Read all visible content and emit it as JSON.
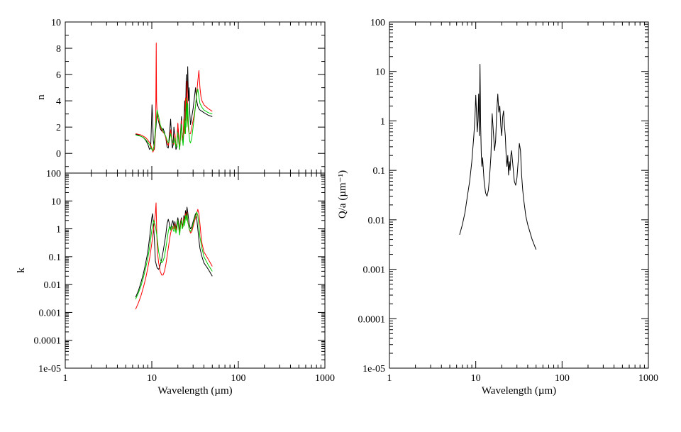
{
  "chart_data": [
    {
      "id": "n-panel",
      "type": "line",
      "xscale": "log",
      "yscale": "linear",
      "xlim": [
        1,
        1000
      ],
      "ylim": [
        -1.5,
        10
      ],
      "yticks": [
        0,
        2,
        4,
        6,
        8,
        10
      ],
      "ytick_labels": [
        "0",
        "2",
        "4",
        "6",
        "8",
        "10"
      ],
      "xticks": [],
      "xtick_labels": [],
      "xlabel": "",
      "ylabel": "n",
      "series": [
        {
          "color": "#000000",
          "x": [
            6.5,
            7,
            7.5,
            8,
            8.5,
            9,
            9.4,
            9.7,
            9.9,
            10.05,
            10.2,
            10.4,
            10.7,
            11,
            11.5,
            12,
            12.5,
            13,
            13.5,
            14,
            14.5,
            15,
            15.5,
            16,
            16.5,
            17,
            17.3,
            17.6,
            18,
            18.5,
            19,
            19.5,
            20,
            20.5,
            21,
            21.5,
            22,
            22.5,
            23,
            23.5,
            24,
            24.5,
            25,
            25.5,
            26,
            26.5,
            27,
            27.5,
            28,
            29,
            30,
            31,
            32,
            33,
            34,
            35,
            36,
            38,
            40,
            45,
            50
          ],
          "y": [
            1.45,
            1.4,
            1.3,
            1.2,
            1.0,
            0.7,
            0.3,
            0.4,
            2.2,
            3.7,
            2.8,
            1.0,
            0.3,
            1.5,
            3.0,
            2.4,
            1.9,
            1.7,
            1.9,
            1.6,
            1.2,
            0.5,
            0.4,
            1.5,
            2.6,
            1.0,
            0.4,
            0.6,
            2.0,
            1.3,
            0.3,
            0.5,
            2.2,
            1.0,
            0.3,
            1.6,
            2.8,
            1.1,
            0.8,
            2.5,
            4.0,
            2.5,
            6.0,
            3.0,
            6.6,
            4.0,
            5.0,
            3.0,
            2.2,
            2.8,
            3.4,
            4.2,
            5.0,
            4.0,
            3.6,
            3.4,
            3.3,
            3.2,
            3.1,
            2.9,
            2.8
          ]
        },
        {
          "color": "#ff0000",
          "x": [
            6.5,
            7,
            7.5,
            8,
            8.5,
            9,
            9.5,
            10,
            10.3,
            10.6,
            10.9,
            11.1,
            11.25,
            11.35,
            11.5,
            11.8,
            12.2,
            12.6,
            13,
            13.5,
            14,
            14.5,
            15,
            15.5,
            16,
            16.5,
            17,
            17.5,
            18,
            18.5,
            19,
            19.5,
            20,
            20.5,
            21,
            21.5,
            22,
            22.5,
            23,
            23.5,
            24,
            24.5,
            25,
            25.5,
            26,
            26.5,
            27,
            28,
            29,
            30,
            31,
            32,
            33,
            34,
            35,
            36,
            37,
            38,
            40,
            45,
            50
          ],
          "y": [
            1.5,
            1.45,
            1.4,
            1.3,
            1.2,
            1.0,
            0.8,
            0.4,
            0.1,
            0.3,
            1.2,
            2.5,
            8.4,
            4.0,
            3.2,
            2.6,
            2.4,
            2.0,
            1.8,
            1.6,
            1.5,
            1.2,
            0.8,
            0.6,
            1.0,
            1.8,
            1.2,
            0.8,
            0.7,
            1.5,
            0.6,
            0.7,
            2.3,
            1.2,
            0.4,
            1.2,
            2.5,
            1.0,
            1.3,
            2.6,
            1.5,
            4.2,
            3.0,
            5.5,
            3.0,
            1.8,
            1.5,
            1.5,
            2.0,
            2.5,
            3.0,
            3.6,
            4.5,
            5.5,
            6.3,
            5.0,
            4.3,
            4.0,
            3.7,
            3.4,
            3.2
          ]
        },
        {
          "color": "#00cc00",
          "x": [
            6.5,
            7,
            7.5,
            8,
            8.5,
            9,
            9.5,
            10,
            10.3,
            10.6,
            10.9,
            11.2,
            11.5,
            12,
            12.5,
            13,
            13.5,
            14,
            14.5,
            15,
            15.5,
            16,
            16.5,
            17,
            17.5,
            18,
            18.5,
            19,
            19.5,
            20,
            20.5,
            21,
            21.5,
            22,
            22.5,
            23,
            23.5,
            24,
            24.5,
            25,
            25.5,
            26,
            26.5,
            27,
            27.5,
            28,
            29,
            30,
            31,
            32,
            33,
            34,
            35,
            36,
            38,
            40,
            45,
            50
          ],
          "y": [
            1.4,
            1.35,
            1.3,
            1.2,
            1.05,
            0.85,
            0.6,
            0.3,
            0.2,
            0.6,
            1.5,
            2.4,
            3.3,
            2.8,
            2.2,
            1.9,
            1.7,
            1.5,
            1.3,
            1.0,
            0.8,
            1.0,
            1.5,
            1.1,
            0.8,
            0.8,
            1.2,
            0.5,
            0.6,
            1.6,
            0.8,
            0.3,
            1.4,
            2.2,
            1.2,
            0.6,
            1.8,
            2.6,
            1.5,
            4.2,
            2.0,
            3.8,
            2.2,
            1.4,
            0.9,
            0.8,
            1.2,
            2.0,
            2.8,
            3.6,
            4.5,
            4.9,
            4.3,
            3.8,
            3.5,
            3.3,
            3.1,
            3.0
          ]
        }
      ]
    },
    {
      "id": "k-panel",
      "type": "line",
      "xscale": "log",
      "yscale": "log",
      "xlim": [
        1,
        1000
      ],
      "ylim": [
        1e-05,
        100
      ],
      "yticks": [
        1e-05,
        0.0001,
        0.001,
        0.01,
        0.1,
        1,
        10,
        100
      ],
      "ytick_labels": [
        "1e-05",
        "0.0001",
        "0.001",
        "0.01",
        "0.1",
        "1",
        "10",
        "100"
      ],
      "xticks": [
        1,
        10,
        100,
        1000
      ],
      "xtick_labels": [
        "1",
        "10",
        "100",
        "1000"
      ],
      "xlabel": "Wavelength (µm)",
      "ylabel": "k",
      "series": [
        {
          "color": "#000000",
          "x": [
            6.5,
            7,
            7.5,
            8,
            8.5,
            9,
            9.5,
            10,
            10.2,
            10.5,
            10.8,
            11,
            11.5,
            12,
            12.5,
            13,
            13.5,
            14,
            14.5,
            15,
            15.5,
            16,
            16.5,
            17,
            17.5,
            18,
            18.5,
            19,
            19.5,
            20,
            20.5,
            21,
            21.5,
            22,
            22.5,
            23,
            23.5,
            24,
            24.5,
            25,
            25.5,
            26,
            26.5,
            27,
            27.5,
            28,
            29,
            30,
            31,
            32,
            33,
            34,
            35,
            36,
            38,
            40,
            45,
            50
          ],
          "y": [
            0.0035,
            0.006,
            0.012,
            0.025,
            0.06,
            0.15,
            0.6,
            2.5,
            3.5,
            1.2,
            0.25,
            0.07,
            0.04,
            0.035,
            0.05,
            0.08,
            0.15,
            0.3,
            0.6,
            1.5,
            2.2,
            1.5,
            0.9,
            1.5,
            2.0,
            1.2,
            1.8,
            1.0,
            1.5,
            2.5,
            1.5,
            0.8,
            1.8,
            2.5,
            1.2,
            1.6,
            3.0,
            2.0,
            4.5,
            3.0,
            6.0,
            4.0,
            2.5,
            1.6,
            1.2,
            1.0,
            1.2,
            1.8,
            2.5,
            3.5,
            2.5,
            1.0,
            0.4,
            0.2,
            0.1,
            0.06,
            0.035,
            0.02
          ]
        },
        {
          "color": "#ff0000",
          "x": [
            6.5,
            7,
            7.5,
            8,
            8.5,
            9,
            9.5,
            10,
            10.5,
            11,
            11.2,
            11.3,
            11.4,
            11.6,
            12,
            12.5,
            13,
            13.5,
            14,
            14.5,
            15,
            15.5,
            16,
            16.5,
            17,
            17.5,
            18,
            18.5,
            19,
            19.5,
            20,
            20.5,
            21,
            21.5,
            22,
            22.5,
            23,
            23.5,
            24,
            24.5,
            25,
            25.5,
            26,
            27,
            28,
            29,
            30,
            31,
            32,
            33,
            34,
            35,
            36,
            37,
            38,
            40,
            45,
            50
          ],
          "y": [
            0.0013,
            0.0022,
            0.004,
            0.008,
            0.017,
            0.04,
            0.1,
            0.3,
            1.0,
            3.5,
            8.5,
            2.5,
            0.8,
            0.15,
            0.06,
            0.03,
            0.022,
            0.022,
            0.03,
            0.05,
            0.1,
            0.2,
            0.4,
            0.7,
            1.0,
            1.2,
            1.0,
            1.5,
            0.9,
            1.2,
            2.0,
            1.2,
            0.7,
            1.5,
            2.2,
            1.0,
            1.5,
            2.5,
            1.5,
            3.5,
            2.2,
            4.0,
            2.0,
            1.0,
            0.7,
            0.8,
            1.2,
            1.8,
            2.5,
            3.5,
            5.0,
            3.5,
            1.5,
            0.6,
            0.3,
            0.15,
            0.08,
            0.045
          ]
        },
        {
          "color": "#00cc00",
          "x": [
            6.5,
            7,
            7.5,
            8,
            8.5,
            9,
            9.5,
            10,
            10.5,
            11,
            11.5,
            12,
            12.5,
            13,
            13.5,
            14,
            14.5,
            15,
            15.5,
            16,
            16.5,
            17,
            17.5,
            18,
            18.5,
            19,
            19.5,
            20,
            20.5,
            21,
            21.5,
            22,
            22.5,
            23,
            23.5,
            24,
            24.5,
            25,
            25.5,
            26,
            27,
            28,
            29,
            30,
            31,
            32,
            33,
            34,
            35,
            36,
            38,
            40,
            45,
            50
          ],
          "y": [
            0.003,
            0.005,
            0.009,
            0.018,
            0.04,
            0.09,
            0.25,
            0.9,
            2.0,
            1.3,
            0.5,
            0.15,
            0.08,
            0.06,
            0.07,
            0.1,
            0.2,
            0.4,
            0.8,
            1.2,
            0.9,
            1.3,
            1.0,
            0.8,
            1.3,
            0.7,
            1.0,
            2.0,
            1.0,
            0.6,
            1.3,
            2.0,
            1.0,
            1.2,
            2.2,
            1.3,
            3.0,
            2.0,
            3.5,
            1.8,
            1.0,
            0.8,
            1.0,
            1.5,
            2.2,
            3.0,
            4.0,
            3.0,
            1.3,
            0.5,
            0.2,
            0.1,
            0.05,
            0.03
          ]
        }
      ]
    },
    {
      "id": "q-panel",
      "type": "line",
      "xscale": "log",
      "yscale": "log",
      "xlim": [
        1,
        1000
      ],
      "ylim": [
        1e-05,
        100
      ],
      "yticks": [
        1e-05,
        0.0001,
        0.001,
        0.01,
        0.1,
        1,
        10,
        100
      ],
      "ytick_labels": [
        "1e-05",
        "0.0001",
        "0.001",
        "0.01",
        "0.1",
        "1",
        "10",
        "100"
      ],
      "xticks": [
        1,
        10,
        100,
        1000
      ],
      "xtick_labels": [
        "1",
        "10",
        "100",
        "1000"
      ],
      "xlabel": "Wavelength (µm)",
      "ylabel": "Q/a (µm⁻¹)",
      "series": [
        {
          "color": "#000000",
          "x": [
            6.5,
            7,
            7.5,
            8,
            8.5,
            9,
            9.5,
            9.8,
            10,
            10.2,
            10.4,
            10.6,
            10.8,
            11,
            11.2,
            11.4,
            11.6,
            11.8,
            12,
            12.5,
            13,
            13.5,
            14,
            14.5,
            15,
            15.5,
            16,
            16.5,
            17,
            17.5,
            18,
            18.5,
            19,
            19.5,
            20,
            20.5,
            21,
            21.5,
            22,
            22.5,
            23,
            23.5,
            24,
            24.5,
            25,
            25.5,
            26,
            27,
            28,
            29,
            30,
            31,
            32,
            33,
            34,
            35,
            36,
            38,
            40,
            42,
            45,
            48,
            50
          ],
          "y": [
            0.005,
            0.008,
            0.014,
            0.03,
            0.06,
            0.15,
            0.5,
            1.2,
            3.3,
            1.5,
            0.6,
            1.0,
            3.5,
            0.5,
            14,
            0.8,
            0.2,
            0.12,
            0.18,
            0.06,
            0.035,
            0.03,
            0.04,
            0.08,
            0.2,
            1.4,
            0.6,
            0.25,
            0.4,
            1.5,
            3.5,
            1.5,
            2.0,
            0.8,
            0.5,
            1.2,
            1.6,
            0.8,
            0.5,
            0.2,
            0.12,
            0.2,
            0.08,
            0.15,
            0.1,
            0.2,
            0.25,
            0.12,
            0.06,
            0.05,
            0.07,
            0.15,
            0.35,
            0.25,
            0.08,
            0.04,
            0.025,
            0.012,
            0.008,
            0.006,
            0.004,
            0.003,
            0.0025
          ]
        }
      ]
    }
  ]
}
